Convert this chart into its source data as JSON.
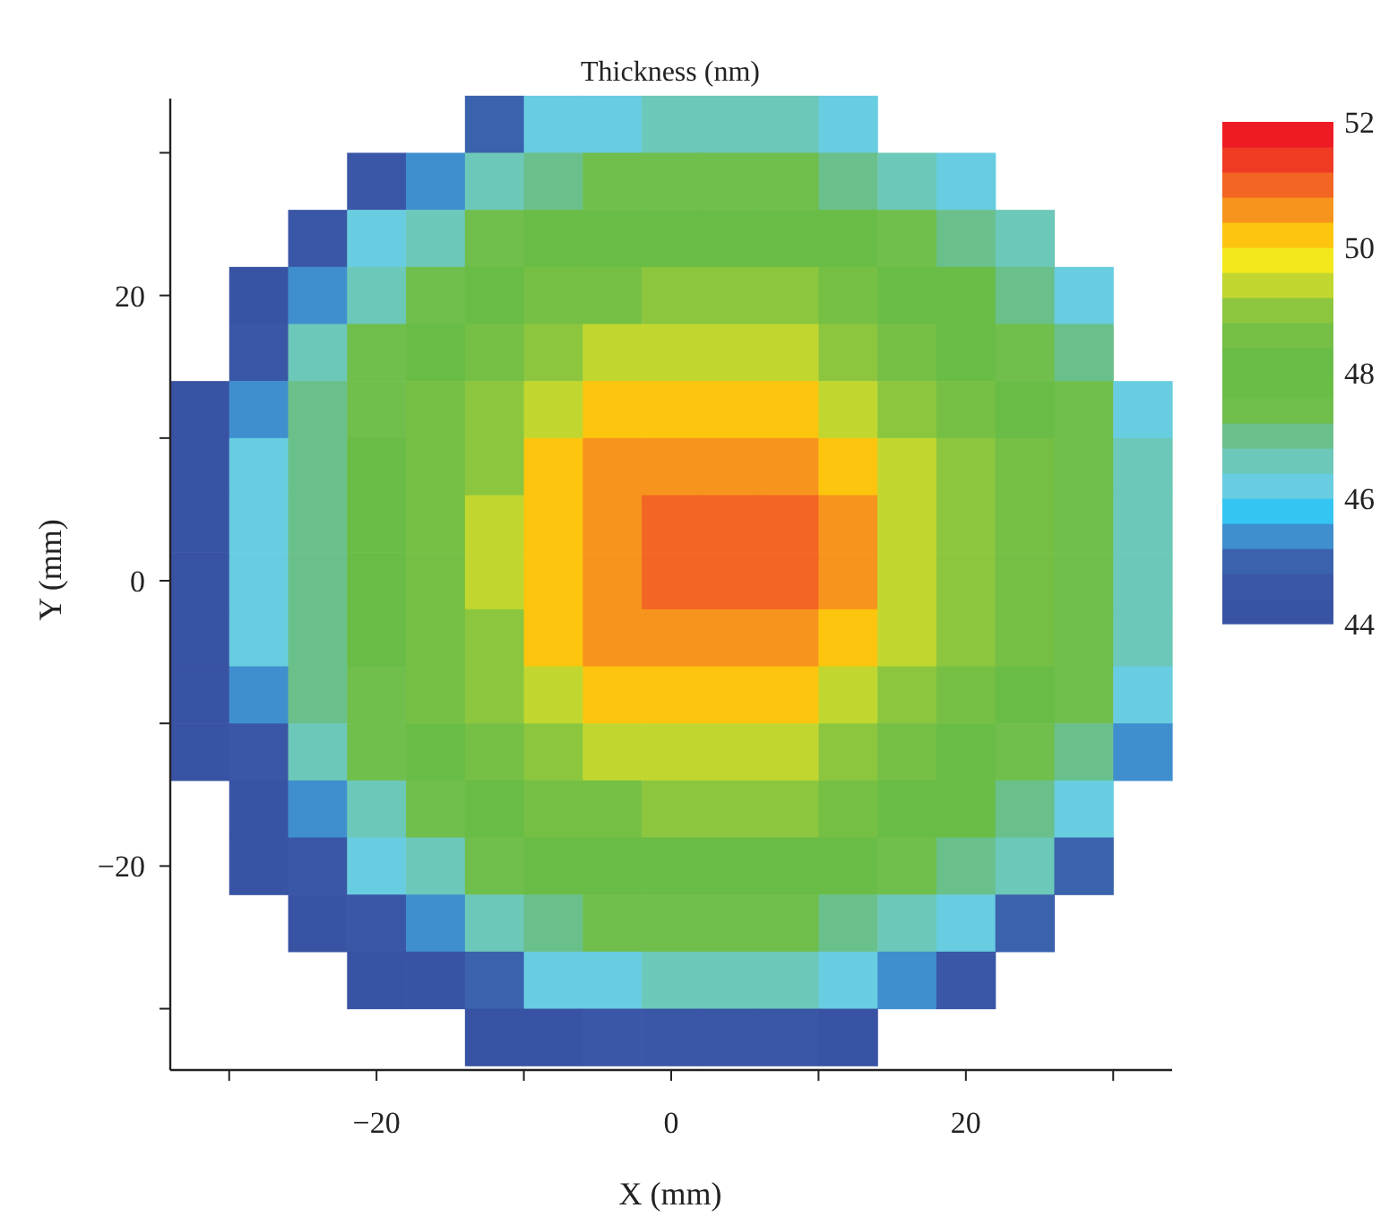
{
  "chart_data": {
    "type": "heatmap",
    "title": "Thickness (nm)",
    "xlabel": "X (mm)",
    "ylabel": "Y (mm)",
    "xlim": [
      -34,
      34
    ],
    "ylim": [
      -34.3,
      33.8
    ],
    "xticks": [
      {
        "value": -30,
        "label": null
      },
      -20,
      {
        "value": -10,
        "label": null
      },
      0,
      {
        "value": 10,
        "label": null
      },
      20,
      {
        "value": 30,
        "label": null
      }
    ],
    "yticks": [
      {
        "value": -30,
        "label": null
      },
      -20,
      {
        "value": -10,
        "label": null
      },
      0,
      {
        "value": 10,
        "label": null
      },
      20,
      {
        "value": 30,
        "label": null
      }
    ],
    "clim": [
      44,
      52
    ],
    "cticks": [
      44,
      46,
      48,
      50,
      52
    ],
    "colors": [
      "#3953a4",
      "#3a56a6",
      "#3b62ad",
      "#3f8fcf",
      "#35c5f3",
      "#68cde0",
      "#6cc8b8",
      "#6ac08a",
      "#70be4c",
      "#6abd45",
      "#69bc46",
      "#75bf44",
      "#8cc63f",
      "#c1d72f",
      "#f3e81c",
      "#fdc50d",
      "#f7941d",
      "#f26522",
      "#ef3b24",
      "#ed1c24"
    ],
    "x": [
      -32,
      -28,
      -24,
      -20,
      -16,
      -12,
      -8,
      -4,
      0,
      4,
      8,
      12,
      16,
      20,
      24,
      28,
      32
    ],
    "y": [
      32,
      28,
      24,
      20,
      16,
      12,
      8,
      4,
      0,
      -4,
      -8,
      -12,
      -16,
      -20,
      -24,
      -28,
      -32
    ],
    "cells": [
      [
        null,
        null,
        null,
        null,
        null,
        45.0,
        46.0,
        46.0,
        46.5,
        46.5,
        46.5,
        46.0,
        null,
        null,
        null,
        null,
        null
      ],
      [
        null,
        null,
        null,
        44.5,
        45.5,
        46.5,
        47.0,
        47.5,
        47.5,
        47.5,
        47.5,
        47.0,
        46.5,
        46.0,
        null,
        null,
        null
      ],
      [
        null,
        null,
        44.5,
        46.0,
        46.5,
        47.5,
        48.0,
        48.0,
        48.0,
        48.0,
        48.0,
        48.0,
        47.5,
        47.0,
        46.5,
        null,
        null
      ],
      [
        null,
        44.0,
        45.5,
        46.5,
        47.5,
        48.0,
        48.5,
        48.5,
        49.0,
        49.0,
        49.0,
        48.5,
        48.0,
        48.0,
        47.0,
        46.0,
        null
      ],
      [
        null,
        44.5,
        46.5,
        47.5,
        48.0,
        48.5,
        49.0,
        49.5,
        49.5,
        49.5,
        49.5,
        49.0,
        48.5,
        48.0,
        47.5,
        47.0,
        null
      ],
      [
        44.0,
        45.5,
        47.0,
        47.5,
        48.5,
        49.0,
        49.5,
        50.0,
        50.0,
        50.0,
        50.0,
        49.5,
        49.0,
        48.5,
        48.0,
        47.5,
        46.0
      ],
      [
        44.0,
        46.0,
        47.0,
        48.0,
        48.5,
        49.0,
        50.0,
        50.5,
        50.5,
        50.5,
        50.5,
        50.0,
        49.5,
        49.0,
        48.5,
        47.5,
        46.5
      ],
      [
        44.0,
        46.0,
        47.0,
        48.0,
        48.5,
        49.5,
        50.0,
        50.5,
        51.0,
        51.0,
        51.0,
        50.5,
        49.5,
        49.0,
        48.5,
        47.5,
        46.5
      ],
      [
        44.0,
        46.0,
        47.0,
        48.0,
        48.5,
        49.5,
        50.0,
        50.5,
        51.0,
        51.0,
        51.0,
        50.5,
        49.5,
        49.0,
        48.5,
        47.5,
        46.5
      ],
      [
        44.0,
        46.0,
        47.0,
        48.0,
        48.5,
        49.0,
        50.0,
        50.5,
        50.5,
        50.5,
        50.5,
        50.0,
        49.5,
        49.0,
        48.5,
        47.5,
        46.5
      ],
      [
        44.0,
        45.5,
        47.0,
        47.5,
        48.5,
        49.0,
        49.5,
        50.0,
        50.0,
        50.0,
        50.0,
        49.5,
        49.0,
        48.5,
        48.0,
        47.5,
        46.0
      ],
      [
        44.0,
        44.5,
        46.5,
        47.5,
        48.0,
        48.5,
        49.0,
        49.5,
        49.5,
        49.5,
        49.5,
        49.0,
        48.5,
        48.0,
        47.5,
        47.0,
        45.5
      ],
      [
        null,
        44.0,
        45.5,
        46.5,
        47.5,
        48.0,
        48.5,
        48.5,
        49.0,
        49.0,
        49.0,
        48.5,
        48.0,
        48.0,
        47.0,
        46.0,
        null
      ],
      [
        null,
        44.0,
        44.5,
        46.0,
        46.5,
        47.5,
        48.0,
        48.0,
        48.0,
        48.0,
        48.0,
        48.0,
        47.5,
        47.0,
        46.5,
        45.0,
        null
      ],
      [
        null,
        null,
        44.0,
        44.5,
        45.5,
        46.5,
        47.0,
        47.5,
        47.5,
        47.5,
        47.5,
        47.0,
        46.5,
        46.0,
        45.0,
        null,
        null
      ],
      [
        null,
        null,
        null,
        44.0,
        44.0,
        45.0,
        46.0,
        46.0,
        46.5,
        46.5,
        46.5,
        46.0,
        45.5,
        44.5,
        null,
        null,
        null
      ],
      [
        null,
        null,
        null,
        null,
        null,
        44.0,
        44.0,
        44.5,
        44.5,
        44.5,
        44.5,
        44.0,
        null,
        null,
        null,
        null,
        null
      ]
    ]
  }
}
